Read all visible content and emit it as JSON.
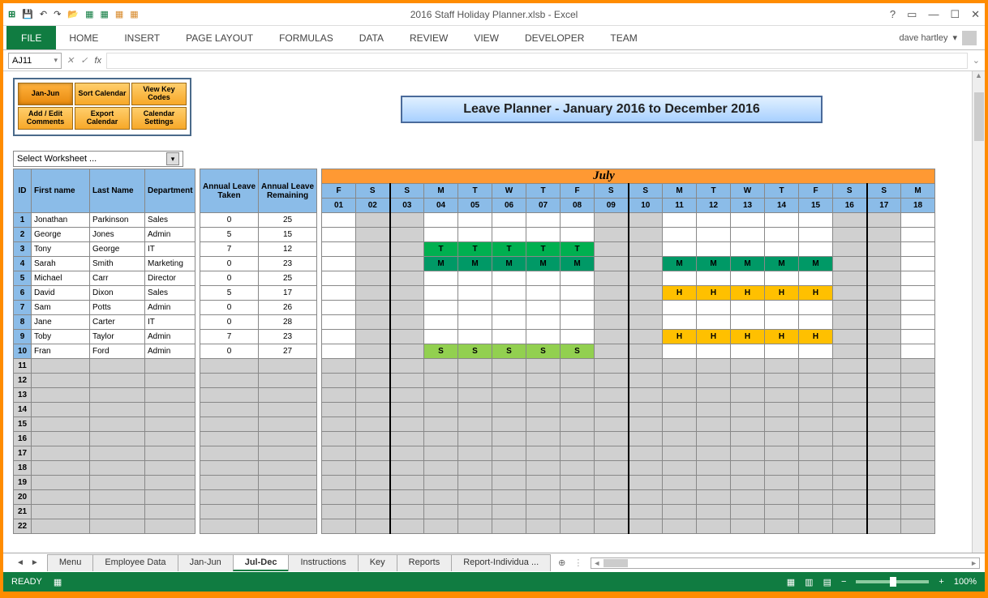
{
  "titlebar": {
    "title": "2016 Staff Holiday Planner.xlsb - Excel"
  },
  "ribbon": {
    "tabs": [
      "FILE",
      "HOME",
      "INSERT",
      "PAGE LAYOUT",
      "FORMULAS",
      "DATA",
      "REVIEW",
      "VIEW",
      "DEVELOPER",
      "TEAM"
    ],
    "user": "dave hartley"
  },
  "formula": {
    "namebox": "AJ11",
    "value": ""
  },
  "controls": {
    "row1": [
      "Jan-Jun",
      "Sort Calendar",
      "View Key Codes"
    ],
    "row2": [
      "Add / Edit Comments",
      "Export Calendar",
      "Calendar Settings"
    ],
    "select_label": "Select Worksheet ..."
  },
  "planner_title": "Leave Planner - January 2016 to December 2016",
  "month_label": "July",
  "headers": {
    "id": "ID",
    "fname": "First name",
    "lname": "Last Name",
    "dept": "Department",
    "taken": "Annual Leave Taken",
    "remain": "Annual Leave Remaining"
  },
  "days": {
    "labels": [
      "F",
      "S",
      "S",
      "M",
      "T",
      "W",
      "T",
      "F",
      "S",
      "S",
      "M",
      "T",
      "W",
      "T",
      "F",
      "S",
      "S",
      "M"
    ],
    "nums": [
      "01",
      "02",
      "03",
      "04",
      "05",
      "06",
      "07",
      "08",
      "09",
      "10",
      "11",
      "12",
      "13",
      "14",
      "15",
      "16",
      "17",
      "18"
    ],
    "weekend": [
      false,
      true,
      true,
      false,
      false,
      false,
      false,
      false,
      true,
      true,
      false,
      false,
      false,
      false,
      false,
      true,
      true,
      false
    ]
  },
  "employees": [
    {
      "id": 1,
      "fname": "Jonathan",
      "lname": "Parkinson",
      "dept": "Sales",
      "taken": 0,
      "remain": 25,
      "leave": {}
    },
    {
      "id": 2,
      "fname": "George",
      "lname": "Jones",
      "dept": "Admin",
      "taken": 5,
      "remain": 15,
      "leave": {}
    },
    {
      "id": 3,
      "fname": "Tony",
      "lname": "George",
      "dept": "IT",
      "taken": 7,
      "remain": 12,
      "leave": {
        "3": "T",
        "4": "T",
        "5": "T",
        "6": "T",
        "7": "T"
      }
    },
    {
      "id": 4,
      "fname": "Sarah",
      "lname": "Smith",
      "dept": "Marketing",
      "taken": 0,
      "remain": 23,
      "leave": {
        "3": "M",
        "4": "M",
        "5": "M",
        "6": "M",
        "7": "M",
        "10": "M",
        "11": "M",
        "12": "M",
        "13": "M",
        "14": "M"
      }
    },
    {
      "id": 5,
      "fname": "Michael",
      "lname": "Carr",
      "dept": "Director",
      "taken": 0,
      "remain": 25,
      "leave": {}
    },
    {
      "id": 6,
      "fname": "David",
      "lname": "Dixon",
      "dept": "Sales",
      "taken": 5,
      "remain": 17,
      "leave": {
        "10": "H",
        "11": "H",
        "12": "H",
        "13": "H",
        "14": "H"
      }
    },
    {
      "id": 7,
      "fname": "Sam",
      "lname": "Potts",
      "dept": "Admin",
      "taken": 0,
      "remain": 26,
      "leave": {}
    },
    {
      "id": 8,
      "fname": "Jane",
      "lname": "Carter",
      "dept": "IT",
      "taken": 0,
      "remain": 28,
      "leave": {}
    },
    {
      "id": 9,
      "fname": "Toby",
      "lname": "Taylor",
      "dept": "Admin",
      "taken": 7,
      "remain": 23,
      "leave": {
        "10": "H",
        "11": "H",
        "12": "H",
        "13": "H",
        "14": "H"
      }
    },
    {
      "id": 10,
      "fname": "Fran",
      "lname": "Ford",
      "dept": "Admin",
      "taken": 0,
      "remain": 27,
      "leave": {
        "3": "S",
        "4": "S",
        "5": "S",
        "6": "S",
        "7": "S"
      }
    }
  ],
  "empty_row_ids": [
    11,
    12,
    13,
    14,
    15,
    16,
    17,
    18,
    19,
    20,
    21,
    22
  ],
  "sheet_tabs": [
    "Menu",
    "Employee Data",
    "Jan-Jun",
    "Jul-Dec",
    "Instructions",
    "Key",
    "Reports",
    "Report-Individua ..."
  ],
  "active_sheet": "Jul-Dec",
  "status": {
    "ready": "READY",
    "zoom": "100%"
  },
  "colors": {
    "orange_frame": "#ff8c00",
    "excel_green": "#107c41",
    "header_blue": "#8bbce8",
    "month_orange": "#ff9933",
    "leave_T": "#00b050",
    "leave_M": "#009966",
    "leave_H": "#ffc000",
    "leave_S": "#92d050",
    "weekend_grey": "#d0d0d0"
  }
}
